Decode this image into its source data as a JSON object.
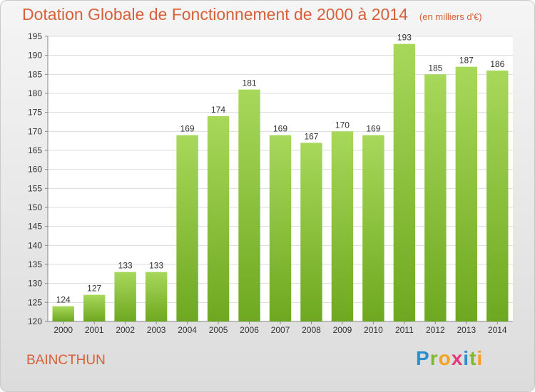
{
  "title": "Dotation Globale de Fonctionnement de 2000 à 2014",
  "subtitle": "(en milliers d'€)",
  "commune": "BAINCTHUN",
  "logo": {
    "letters": [
      "P",
      "r",
      "o",
      "x",
      "i",
      "t",
      "i"
    ],
    "colors": [
      "#2a8fd0",
      "#7dba2f",
      "#f4a11e",
      "#e5397a",
      "#2a8fd0",
      "#7dba2f",
      "#f4a11e"
    ]
  },
  "colors": {
    "bar_light": "#a8d85a",
    "bar_dark": "#6ea820",
    "title": "#d6603a"
  },
  "chart_data": {
    "type": "bar",
    "title": "Dotation Globale de Fonctionnement de 2000 à 2014",
    "xlabel": "",
    "ylabel": "",
    "categories": [
      "2000",
      "2001",
      "2002",
      "2003",
      "2004",
      "2005",
      "2006",
      "2007",
      "2008",
      "2009",
      "2010",
      "2011",
      "2012",
      "2013",
      "2014"
    ],
    "values": [
      124,
      127,
      133,
      133,
      169,
      174,
      181,
      169,
      167,
      170,
      169,
      193,
      185,
      187,
      186
    ],
    "ylim": [
      120,
      195
    ],
    "yticks": [
      120,
      125,
      130,
      135,
      140,
      145,
      150,
      155,
      160,
      165,
      170,
      175,
      180,
      185,
      190,
      195
    ],
    "grid": true,
    "legend": "none"
  }
}
